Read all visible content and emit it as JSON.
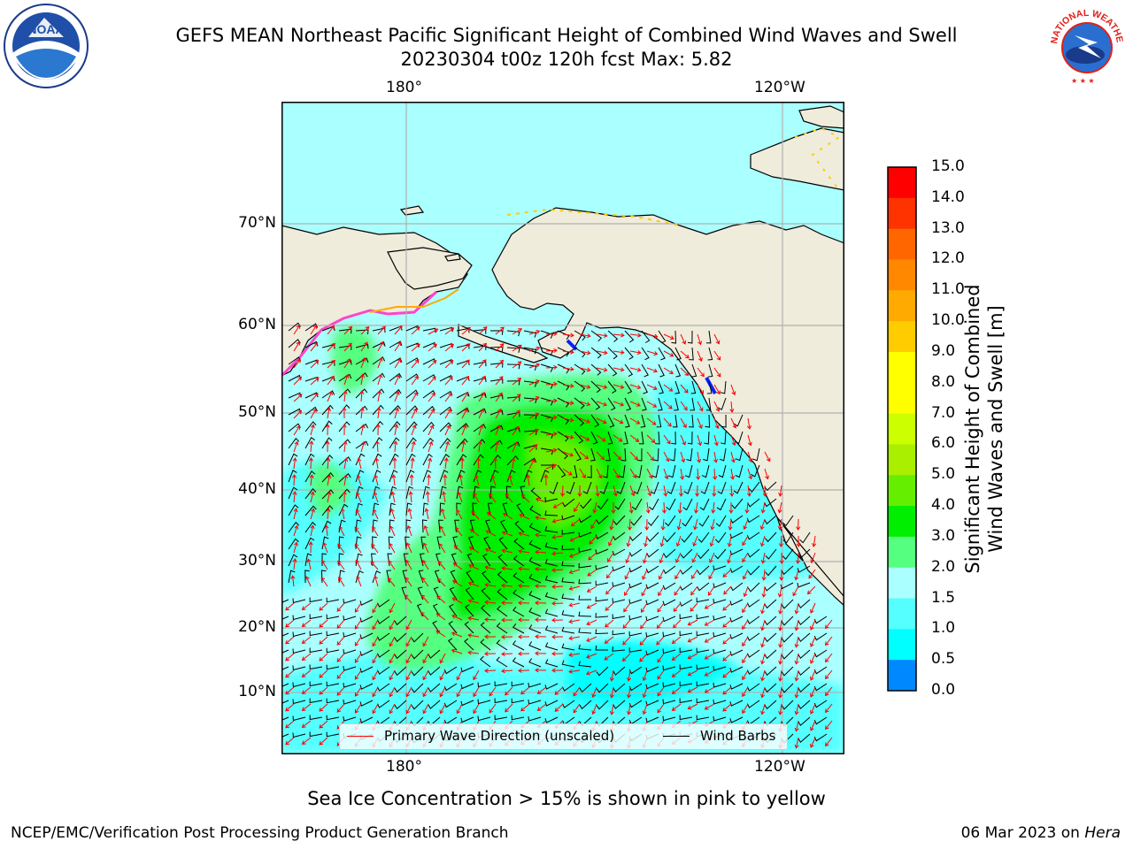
{
  "title": {
    "line1": "GEFS MEAN Northeast Pacific Significant Height of Combined Wind Waves and Swell",
    "line2": "20230304 t00z 120h fcst   Max: 5.82"
  },
  "map": {
    "lon_labels_top": [
      "180°",
      "120°W"
    ],
    "lon_labels_bottom": [
      "180°",
      "120°W"
    ],
    "lat_labels": [
      "70°N",
      "60°N",
      "50°N",
      "40°N",
      "30°N",
      "20°N",
      "10°N"
    ],
    "colors": {
      "land": "#efecdc",
      "ocean_low": "#aaffff",
      "ocean_mid": "#55ffff",
      "ocean_cyan": "#00ffff",
      "wave_3to4": "#55ff80",
      "wave_4to5": "#00ee00",
      "wave_5to6": "#66ee00",
      "grid": "#b0b0b0"
    }
  },
  "legend": {
    "wave_direction_label": "Primary Wave Direction (unscaled)",
    "wind_barbs_label": "Wind Barbs",
    "wave_color": "#ff0000",
    "barb_color": "#000000"
  },
  "colorbar": {
    "label_line1": "Significant Height of Combined",
    "label_line2": "Wind Waves and Swell [m]",
    "ticks": [
      "15.0",
      "14.0",
      "13.0",
      "12.0",
      "11.0",
      "10.0",
      "9.0",
      "8.0",
      "7.0",
      "6.0",
      "5.0",
      "4.0",
      "3.0",
      "2.0",
      "1.5",
      "1.0",
      "0.5",
      "0.0"
    ],
    "segment_colors": [
      "#ff0000",
      "#ff3300",
      "#ff6600",
      "#ff8800",
      "#ffaa00",
      "#ffcc00",
      "#ffff00",
      "#ffff00",
      "#ccff00",
      "#aaee00",
      "#66ee00",
      "#00ee00",
      "#55ff80",
      "#aaffff",
      "#55ffff",
      "#00ffff",
      "#0088ff",
      "#0000ff"
    ]
  },
  "logos": {
    "left_text": "NOAA",
    "right_text": "NATIONAL WEATHER SERVICE"
  },
  "footer": {
    "note": "Sea Ice Concentration > 15% is shown in pink to yellow",
    "left": "NCEP/EMC/Verification Post Processing Product Generation Branch",
    "right_date": "06 Mar 2023 on",
    "right_host": "Hera"
  }
}
